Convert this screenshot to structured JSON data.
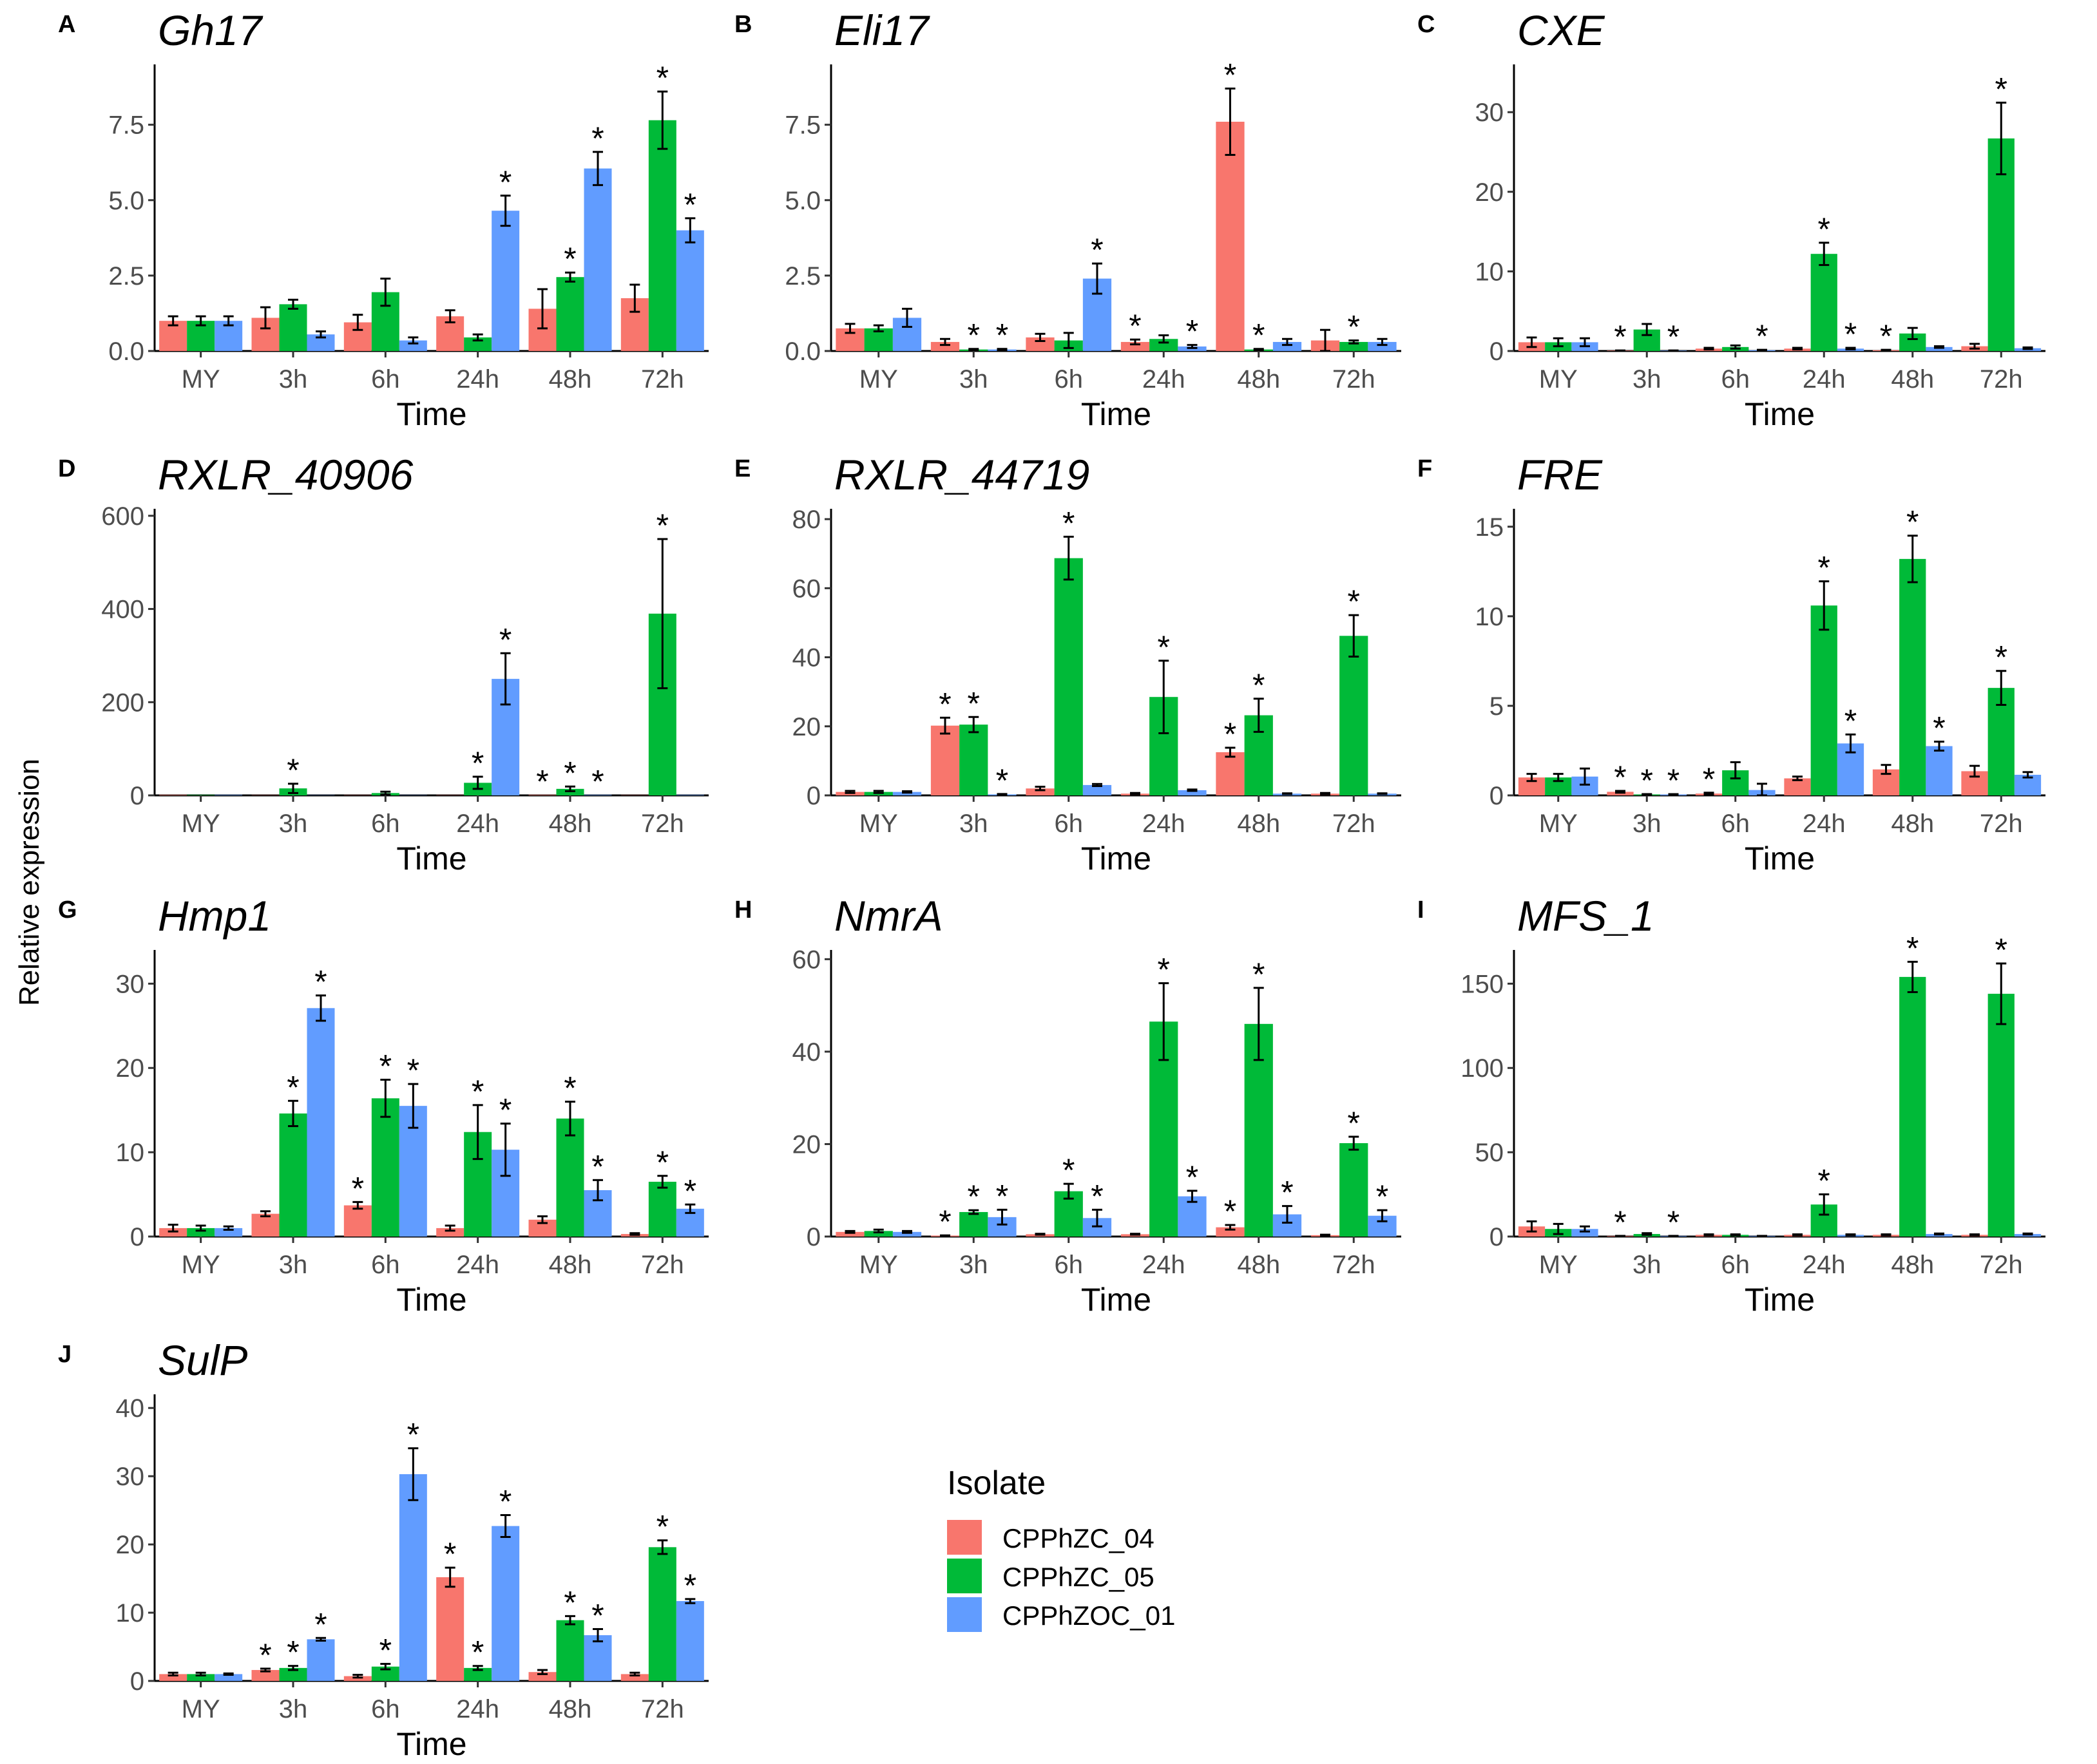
{
  "y_axis_title": "Relative expression",
  "legend": {
    "title": "Isolate",
    "items": [
      {
        "label": "CPPhZC_04",
        "color": "#F8766D"
      },
      {
        "label": "CPPhZC_05",
        "color": "#00BA38"
      },
      {
        "label": "CPPhZOC_01",
        "color": "#619CFF"
      }
    ]
  },
  "chart_data": [
    {
      "type": "bar",
      "letter": "A",
      "title": "Gh17",
      "xlabel": "Time",
      "ylabel": "Relative expression",
      "categories": [
        "MY",
        "3h",
        "6h",
        "24h",
        "48h",
        "72h"
      ],
      "yticks": [
        0,
        2.5,
        5,
        7.5
      ],
      "ytick_labels": [
        "0.0",
        "2.5",
        "5.0",
        "7.5"
      ],
      "ylim": [
        0,
        9.5
      ],
      "series": [
        {
          "name": "CPPhZC_04",
          "values": [
            1.0,
            1.1,
            0.95,
            1.15,
            1.4,
            1.75
          ],
          "errors": [
            0.15,
            0.35,
            0.25,
            0.2,
            0.65,
            0.45
          ],
          "sig": [
            false,
            false,
            false,
            false,
            false,
            false
          ]
        },
        {
          "name": "CPPhZC_05",
          "values": [
            1.0,
            1.55,
            1.95,
            0.45,
            2.45,
            7.65
          ],
          "errors": [
            0.15,
            0.15,
            0.45,
            0.1,
            0.15,
            0.95
          ],
          "sig": [
            false,
            false,
            false,
            false,
            true,
            true
          ]
        },
        {
          "name": "CPPhZOC_01",
          "values": [
            1.0,
            0.55,
            0.35,
            4.65,
            6.05,
            4.0
          ],
          "errors": [
            0.15,
            0.1,
            0.1,
            0.5,
            0.55,
            0.4
          ],
          "sig": [
            false,
            false,
            false,
            true,
            true,
            true
          ]
        }
      ]
    },
    {
      "type": "bar",
      "letter": "B",
      "title": "Eli17",
      "xlabel": "Time",
      "ylabel": "Relative expression",
      "categories": [
        "MY",
        "3h",
        "6h",
        "24h",
        "48h",
        "72h"
      ],
      "yticks": [
        0,
        2.5,
        5,
        7.5
      ],
      "ytick_labels": [
        "0.0",
        "2.5",
        "5.0",
        "7.5"
      ],
      "ylim": [
        0,
        9.5
      ],
      "series": [
        {
          "name": "CPPhZC_04",
          "values": [
            0.75,
            0.3,
            0.45,
            0.3,
            7.6,
            0.35
          ],
          "errors": [
            0.15,
            0.1,
            0.12,
            0.08,
            1.1,
            0.35
          ],
          "sig": [
            false,
            false,
            false,
            true,
            true,
            false
          ]
        },
        {
          "name": "CPPhZC_05",
          "values": [
            0.75,
            0.05,
            0.35,
            0.4,
            0.05,
            0.3
          ],
          "errors": [
            0.1,
            0.02,
            0.25,
            0.12,
            0.02,
            0.05
          ],
          "sig": [
            false,
            true,
            false,
            false,
            true,
            true
          ]
        },
        {
          "name": "CPPhZOC_01",
          "values": [
            1.1,
            0.05,
            2.4,
            0.15,
            0.3,
            0.3
          ],
          "errors": [
            0.3,
            0.02,
            0.5,
            0.05,
            0.1,
            0.1
          ],
          "sig": [
            false,
            true,
            true,
            true,
            false,
            false
          ]
        }
      ]
    },
    {
      "type": "bar",
      "letter": "C",
      "title": "CXE",
      "xlabel": "Time",
      "ylabel": "Relative expression",
      "categories": [
        "MY",
        "3h",
        "6h",
        "24h",
        "48h",
        "72h"
      ],
      "yticks": [
        0,
        10,
        20,
        30
      ],
      "ytick_labels": [
        "0",
        "10",
        "20",
        "30"
      ],
      "ylim": [
        0,
        36
      ],
      "series": [
        {
          "name": "CPPhZC_04",
          "values": [
            1.1,
            0.05,
            0.3,
            0.3,
            0.1,
            0.6
          ],
          "errors": [
            0.6,
            0.02,
            0.1,
            0.1,
            0.05,
            0.3
          ],
          "sig": [
            false,
            true,
            false,
            false,
            true,
            false
          ]
        },
        {
          "name": "CPPhZC_05",
          "values": [
            1.1,
            2.7,
            0.5,
            12.2,
            2.2,
            26.7
          ],
          "errors": [
            0.5,
            0.7,
            0.2,
            1.4,
            0.7,
            4.5
          ],
          "sig": [
            false,
            false,
            false,
            true,
            false,
            true
          ]
        },
        {
          "name": "CPPhZOC_01",
          "values": [
            1.1,
            0.05,
            0.1,
            0.3,
            0.5,
            0.35
          ],
          "errors": [
            0.5,
            0.02,
            0.05,
            0.1,
            0.1,
            0.1
          ],
          "sig": [
            false,
            true,
            true,
            true,
            false,
            false
          ]
        }
      ]
    },
    {
      "type": "bar",
      "letter": "D",
      "title": "RXLR_40906",
      "xlabel": "Time",
      "ylabel": "Relative expression",
      "categories": [
        "MY",
        "3h",
        "6h",
        "24h",
        "48h",
        "72h"
      ],
      "yticks": [
        0,
        200,
        400,
        600
      ],
      "ytick_labels": [
        "0",
        "200",
        "400",
        "600"
      ],
      "ylim": [
        0,
        615
      ],
      "series": [
        {
          "name": "CPPhZC_04",
          "values": [
            1,
            0.5,
            0.5,
            0.5,
            1,
            0.5
          ],
          "errors": [
            0,
            0,
            0,
            0,
            0,
            0
          ],
          "sig": [
            false,
            false,
            false,
            false,
            true,
            false
          ]
        },
        {
          "name": "CPPhZC_05",
          "values": [
            1,
            15,
            5,
            27,
            14,
            390
          ],
          "errors": [
            0,
            10,
            3,
            13,
            5,
            160
          ],
          "sig": [
            false,
            true,
            false,
            true,
            true,
            true
          ]
        },
        {
          "name": "CPPhZOC_01",
          "values": [
            1,
            0.5,
            0.5,
            250,
            1,
            1
          ],
          "errors": [
            0,
            0,
            0,
            55,
            0,
            0
          ],
          "sig": [
            false,
            false,
            false,
            true,
            true,
            false
          ]
        }
      ]
    },
    {
      "type": "bar",
      "letter": "E",
      "title": "RXLR_44719",
      "xlabel": "Time",
      "ylabel": "Relative expression",
      "categories": [
        "MY",
        "3h",
        "6h",
        "24h",
        "48h",
        "72h"
      ],
      "yticks": [
        0,
        20,
        40,
        60,
        80
      ],
      "ytick_labels": [
        "0",
        "20",
        "40",
        "60",
        "80"
      ],
      "ylim": [
        0,
        83
      ],
      "series": [
        {
          "name": "CPPhZC_04",
          "values": [
            1,
            20.2,
            2,
            0.5,
            12.5,
            0.5
          ],
          "errors": [
            0.3,
            2.3,
            0.5,
            0.2,
            1.3,
            0.2
          ],
          "sig": [
            false,
            true,
            false,
            false,
            true,
            false
          ]
        },
        {
          "name": "CPPhZC_05",
          "values": [
            1,
            20.5,
            68.7,
            28.5,
            23.2,
            46.2
          ],
          "errors": [
            0.3,
            2.2,
            6.2,
            10.5,
            4.8,
            6
          ],
          "sig": [
            false,
            true,
            true,
            true,
            true,
            true
          ]
        },
        {
          "name": "CPPhZOC_01",
          "values": [
            1,
            0.3,
            3,
            1.5,
            0.5,
            0.5
          ],
          "errors": [
            0.2,
            0.1,
            0.3,
            0.2,
            0.1,
            0.1
          ],
          "sig": [
            false,
            true,
            false,
            false,
            false,
            false
          ]
        }
      ]
    },
    {
      "type": "bar",
      "letter": "F",
      "title": "FRE",
      "xlabel": "Time",
      "ylabel": "Relative expression",
      "categories": [
        "MY",
        "3h",
        "6h",
        "24h",
        "48h",
        "72h"
      ],
      "yticks": [
        0,
        5,
        10,
        15
      ],
      "ytick_labels": [
        "0",
        "5",
        "10",
        "15"
      ],
      "ylim": [
        0,
        16
      ],
      "series": [
        {
          "name": "CPPhZC_04",
          "values": [
            1,
            0.2,
            0.1,
            0.95,
            1.45,
            1.35
          ],
          "errors": [
            0.2,
            0.05,
            0.05,
            0.1,
            0.25,
            0.3
          ],
          "sig": [
            false,
            true,
            true,
            false,
            false,
            false
          ]
        },
        {
          "name": "CPPhZC_05",
          "values": [
            1,
            0.05,
            1.4,
            10.6,
            13.2,
            6.0
          ],
          "errors": [
            0.2,
            0.02,
            0.45,
            1.35,
            1.3,
            0.95
          ],
          "sig": [
            false,
            true,
            false,
            true,
            true,
            true
          ]
        },
        {
          "name": "CPPhZOC_01",
          "values": [
            1.05,
            0.05,
            0.3,
            2.9,
            2.75,
            1.15
          ],
          "errors": [
            0.45,
            0.02,
            0.35,
            0.5,
            0.25,
            0.15
          ],
          "sig": [
            false,
            true,
            false,
            true,
            true,
            false
          ]
        }
      ]
    },
    {
      "type": "bar",
      "letter": "G",
      "title": "Hmp1",
      "xlabel": "Time",
      "ylabel": "Relative expression",
      "categories": [
        "MY",
        "3h",
        "6h",
        "24h",
        "48h",
        "72h"
      ],
      "yticks": [
        0,
        10,
        20,
        30
      ],
      "ytick_labels": [
        "0",
        "10",
        "20",
        "30"
      ],
      "ylim": [
        0,
        34
      ],
      "series": [
        {
          "name": "CPPhZC_04",
          "values": [
            1,
            2.7,
            3.7,
            1,
            2,
            0.3
          ],
          "errors": [
            0.4,
            0.3,
            0.4,
            0.3,
            0.4,
            0.1
          ],
          "sig": [
            false,
            false,
            true,
            false,
            false,
            false
          ]
        },
        {
          "name": "CPPhZC_05",
          "values": [
            1,
            14.6,
            16.4,
            12.4,
            14,
            6.5
          ],
          "errors": [
            0.3,
            1.5,
            2.2,
            3.2,
            2,
            0.7
          ],
          "sig": [
            false,
            true,
            true,
            true,
            true,
            true
          ]
        },
        {
          "name": "CPPhZOC_01",
          "values": [
            1,
            27.1,
            15.5,
            10.3,
            5.5,
            3.3
          ],
          "errors": [
            0.2,
            1.5,
            2.6,
            3.1,
            1.2,
            0.5
          ],
          "sig": [
            false,
            true,
            true,
            true,
            true,
            true
          ]
        }
      ]
    },
    {
      "type": "bar",
      "letter": "H",
      "title": "NmrA",
      "xlabel": "Time",
      "ylabel": "Relative expression",
      "categories": [
        "MY",
        "3h",
        "6h",
        "24h",
        "48h",
        "72h"
      ],
      "yticks": [
        0,
        20,
        40,
        60
      ],
      "ytick_labels": [
        "0",
        "20",
        "40",
        "60"
      ],
      "ylim": [
        0,
        62
      ],
      "series": [
        {
          "name": "CPPhZC_04",
          "values": [
            1,
            0.2,
            0.5,
            0.5,
            2,
            0.3
          ],
          "errors": [
            0.2,
            0.05,
            0.1,
            0.1,
            0.5,
            0.1
          ],
          "sig": [
            false,
            true,
            false,
            false,
            true,
            false
          ]
        },
        {
          "name": "CPPhZC_05",
          "values": [
            1.2,
            5.3,
            9.8,
            46.5,
            46,
            20.2
          ],
          "errors": [
            0.3,
            0.4,
            1.6,
            8.3,
            7.8,
            1.4
          ],
          "sig": [
            false,
            true,
            true,
            true,
            true,
            true
          ]
        },
        {
          "name": "CPPhZOC_01",
          "values": [
            1,
            4.2,
            4,
            8.7,
            4.8,
            4.5
          ],
          "errors": [
            0.2,
            1.6,
            1.8,
            1.2,
            1.8,
            1.2
          ],
          "sig": [
            false,
            true,
            true,
            true,
            true,
            true
          ]
        }
      ]
    },
    {
      "type": "bar",
      "letter": "I",
      "title": "MFS_1",
      "xlabel": "Time",
      "ylabel": "Relative expression",
      "categories": [
        "MY",
        "3h",
        "6h",
        "24h",
        "48h",
        "72h"
      ],
      "yticks": [
        0,
        50,
        100,
        150
      ],
      "ytick_labels": [
        "0",
        "50",
        "100",
        "150"
      ],
      "ylim": [
        0,
        170
      ],
      "series": [
        {
          "name": "CPPhZC_04",
          "values": [
            6,
            0.3,
            1,
            1,
            1,
            1
          ],
          "errors": [
            3,
            0.1,
            0.3,
            0.3,
            0.3,
            0.3
          ],
          "sig": [
            false,
            true,
            false,
            false,
            false,
            false
          ]
        },
        {
          "name": "CPPhZC_05",
          "values": [
            4.5,
            1.5,
            1,
            19,
            154,
            144
          ],
          "errors": [
            3,
            0.5,
            0.3,
            6,
            9,
            18
          ],
          "sig": [
            false,
            false,
            false,
            true,
            true,
            true
          ]
        },
        {
          "name": "CPPhZOC_01",
          "values": [
            4.5,
            0.3,
            0.3,
            1,
            1.5,
            1.5
          ],
          "errors": [
            1.5,
            0.1,
            0.1,
            0.3,
            0.3,
            0.3
          ],
          "sig": [
            false,
            true,
            false,
            false,
            false,
            false
          ]
        }
      ]
    },
    {
      "type": "bar",
      "letter": "J",
      "title": "SulP",
      "xlabel": "Time",
      "ylabel": "Relative expression",
      "categories": [
        "MY",
        "3h",
        "6h",
        "24h",
        "48h",
        "72h"
      ],
      "yticks": [
        0,
        10,
        20,
        30,
        40
      ],
      "ytick_labels": [
        "0",
        "10",
        "20",
        "30",
        "40"
      ],
      "ylim": [
        0,
        42
      ],
      "series": [
        {
          "name": "CPPhZC_04",
          "values": [
            1,
            1.6,
            0.7,
            15.2,
            1.3,
            1
          ],
          "errors": [
            0.2,
            0.2,
            0.2,
            1.4,
            0.3,
            0.2
          ],
          "sig": [
            false,
            true,
            false,
            true,
            false,
            false
          ]
        },
        {
          "name": "CPPhZC_05",
          "values": [
            1,
            1.9,
            2.1,
            1.9,
            8.9,
            19.6
          ],
          "errors": [
            0.2,
            0.3,
            0.4,
            0.3,
            0.6,
            1
          ],
          "sig": [
            false,
            true,
            true,
            true,
            true,
            true
          ]
        },
        {
          "name": "CPPhZOC_01",
          "values": [
            1,
            6.1,
            30.3,
            22.7,
            6.7,
            11.7
          ],
          "errors": [
            0.1,
            0.2,
            3.8,
            1.6,
            0.9,
            0.3
          ],
          "sig": [
            false,
            true,
            true,
            true,
            true,
            true
          ]
        }
      ]
    }
  ]
}
